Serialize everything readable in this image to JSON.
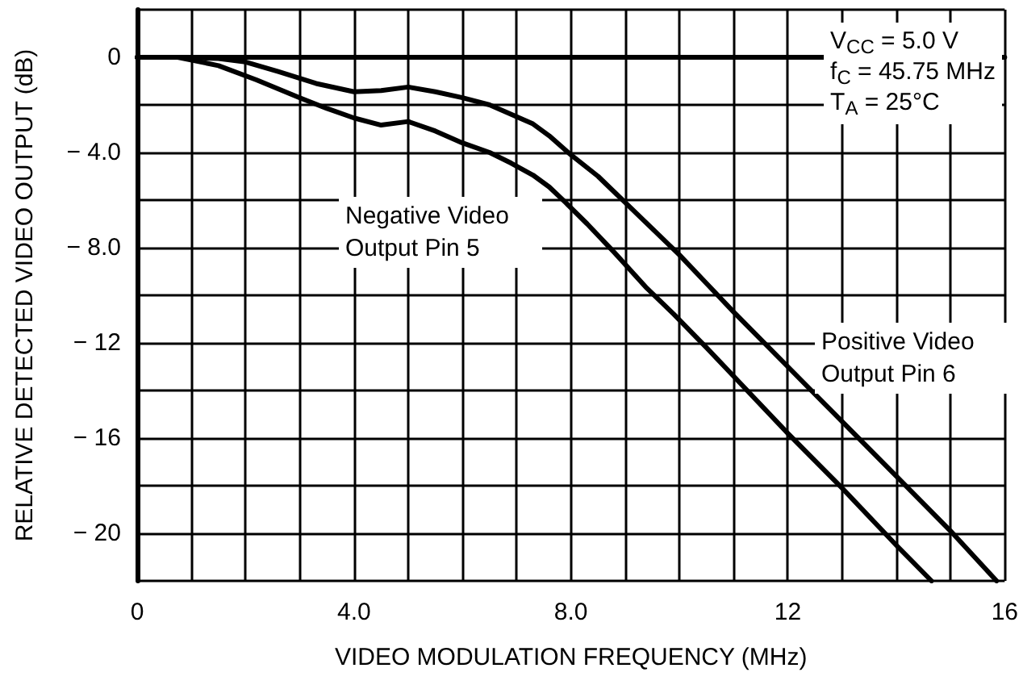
{
  "chart_data": {
    "type": "line",
    "xlabel": "VIDEO MODULATION FREQUENCY (MHz)",
    "ylabel": "RELATIVE DETECTED VIDEO OUTPUT (dB)",
    "xlim": [
      0,
      16
    ],
    "ylim": [
      -22,
      2
    ],
    "xticks": [
      0,
      {
        "value": 1,
        "label": null
      },
      {
        "value": 2,
        "label": null
      },
      {
        "value": 3,
        "label": null
      },
      {
        "value": 4,
        "label": "4.0"
      },
      {
        "value": 5,
        "label": null
      },
      {
        "value": 6,
        "label": null
      },
      {
        "value": 7,
        "label": null
      },
      {
        "value": 8,
        "label": "8.0"
      },
      {
        "value": 9,
        "label": null
      },
      {
        "value": 10,
        "label": null
      },
      {
        "value": 11,
        "label": null
      },
      12,
      {
        "value": 13,
        "label": null
      },
      {
        "value": 14,
        "label": null
      },
      {
        "value": 15,
        "label": null
      },
      16
    ],
    "yticks": [
      {
        "value": -22,
        "label": null
      },
      {
        "value": -20,
        "label": "− 20"
      },
      {
        "value": -18,
        "label": null
      },
      {
        "value": -16,
        "label": "− 16"
      },
      {
        "value": -14,
        "label": null
      },
      {
        "value": -12,
        "label": "− 12"
      },
      {
        "value": -10,
        "label": null
      },
      {
        "value": -8,
        "label": "− 8.0"
      },
      {
        "value": -6,
        "label": null
      },
      {
        "value": -4,
        "label": "− 4.0"
      },
      {
        "value": -2,
        "label": null
      },
      0,
      {
        "value": 2,
        "label": null
      }
    ],
    "grid": true,
    "legend": false,
    "marker": "none",
    "line_style": "solid",
    "annotations": [
      "V$_{CC}$ = 5.0 V",
      "f$_{C}$ = 45.75 MHz",
      "T$_{A}$ = 25°C"
    ],
    "series": [
      {
        "name": "Positive Video Output Pin 6",
        "color": "#000000",
        "x": [
          0,
          0.8,
          1.5,
          2.0,
          2.6,
          3.3,
          4.0,
          4.5,
          5.0,
          5.5,
          6.0,
          6.5,
          6.9,
          7.3,
          7.6,
          8.0,
          8.5,
          9.0,
          9.5,
          10.0,
          10.5,
          11.0,
          12.0,
          13.0,
          14.0,
          15.0,
          15.85
        ],
        "values": [
          0,
          0,
          -0.05,
          -0.2,
          -0.6,
          -1.1,
          -1.45,
          -1.4,
          -1.25,
          -1.45,
          -1.7,
          -2.0,
          -2.4,
          -2.8,
          -3.3,
          -4.1,
          -5.0,
          -6.1,
          -7.2,
          -8.3,
          -9.5,
          -10.7,
          -13.0,
          -15.3,
          -17.6,
          -19.9,
          -22
        ]
      },
      {
        "name": "Negative Video Output Pin 5",
        "color": "#000000",
        "x": [
          0,
          0.75,
          1.5,
          2.2,
          3.0,
          3.5,
          4.0,
          4.5,
          5.0,
          5.5,
          6.0,
          6.5,
          6.9,
          7.3,
          7.6,
          7.9,
          8.3,
          8.8,
          9.4,
          9.9,
          10.5,
          11.0,
          12.0,
          13.0,
          14.0,
          14.65
        ],
        "values": [
          0,
          0,
          -0.35,
          -0.95,
          -1.7,
          -2.15,
          -2.55,
          -2.85,
          -2.7,
          -3.1,
          -3.6,
          -4.0,
          -4.45,
          -4.95,
          -5.45,
          -6.1,
          -7.0,
          -8.2,
          -9.7,
          -10.8,
          -12.2,
          -13.4,
          -15.8,
          -18.1,
          -20.5,
          -22
        ]
      }
    ]
  }
}
